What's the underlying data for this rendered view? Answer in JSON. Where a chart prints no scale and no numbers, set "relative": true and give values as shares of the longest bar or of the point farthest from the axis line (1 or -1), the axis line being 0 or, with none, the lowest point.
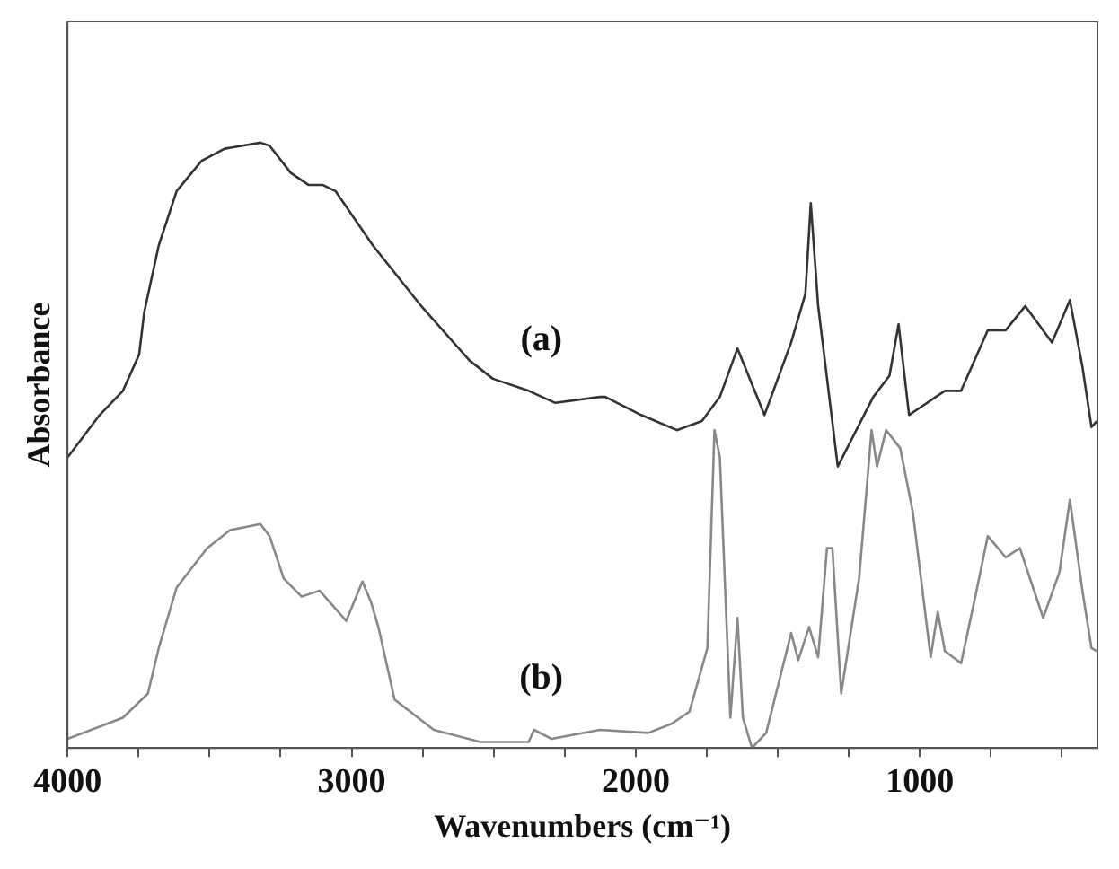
{
  "chart_data": {
    "type": "line",
    "xlabel": "Wavenumbers (cm⁻¹)",
    "ylabel": "Absorbance",
    "relative": true,
    "grid": false,
    "legend": false,
    "marker": "none",
    "line_style": "solid",
    "xlim": [
      4000,
      375
    ],
    "xticks": [
      4000,
      {
        "value": 3750,
        "label": null
      },
      {
        "value": 3500,
        "label": null
      },
      {
        "value": 3250,
        "label": null
      },
      3000,
      {
        "value": 2750,
        "label": null
      },
      {
        "value": 2500,
        "label": null
      },
      {
        "value": 2250,
        "label": null
      },
      2000,
      {
        "value": 1750,
        "label": null
      },
      {
        "value": 1500,
        "label": null
      },
      {
        "value": 1250,
        "label": null
      },
      1000,
      {
        "value": 750,
        "label": null
      },
      {
        "value": 500,
        "label": null
      }
    ],
    "series": [
      {
        "name": "(a)",
        "color": "#333333",
        "x": [
          4000,
          3887,
          3805,
          3748,
          3730,
          3679,
          3616,
          3528,
          3447,
          3321,
          3289,
          3214,
          3151,
          3101,
          3057,
          2925,
          2755,
          2585,
          2503,
          2377,
          2283,
          2126,
          2107,
          1981,
          1855,
          1767,
          1704,
          1642,
          1547,
          1453,
          1403,
          1384,
          1358,
          1289,
          1164,
          1107,
          1075,
          1038,
          912,
          855,
          761,
          698,
          629,
          535,
          472,
          428,
          396,
          377
        ],
        "values": [
          0.48,
          0.55,
          0.59,
          0.65,
          0.72,
          0.83,
          0.92,
          0.97,
          0.99,
          1,
          0.995,
          0.95,
          0.93,
          0.93,
          0.92,
          0.83,
          0.73,
          0.64,
          0.61,
          0.59,
          0.57,
          0.58,
          0.58,
          0.55,
          0.525,
          0.54,
          0.58,
          0.66,
          0.55,
          0.67,
          0.75,
          0.9,
          0.73,
          0.465,
          0.58,
          0.615,
          0.7,
          0.55,
          0.59,
          0.59,
          0.69,
          0.69,
          0.73,
          0.67,
          0.74,
          0.63,
          0.53,
          0.54
        ]
      },
      {
        "name": "(b)",
        "color": "#888888",
        "x": [
          4000,
          3805,
          3717,
          3679,
          3616,
          3509,
          3428,
          3321,
          3289,
          3239,
          3176,
          3113,
          3019,
          2962,
          2931,
          2906,
          2849,
          2711,
          2547,
          2377,
          2358,
          2296,
          2126,
          1956,
          1874,
          1811,
          1748,
          1723,
          1704,
          1667,
          1642,
          1623,
          1591,
          1541,
          1453,
          1428,
          1390,
          1358,
          1327,
          1308,
          1277,
          1214,
          1170,
          1151,
          1119,
          1069,
          1025,
          962,
          937,
          912,
          855,
          805,
          761,
          698,
          648,
          566,
          509,
          472,
          428,
          396,
          377
        ],
        "values": [
          0.015,
          0.05,
          0.09,
          0.165,
          0.265,
          0.33,
          0.36,
          0.37,
          0.35,
          0.28,
          0.25,
          0.26,
          0.21,
          0.275,
          0.24,
          0.2,
          0.08,
          0.03,
          0.01,
          0.01,
          0.03,
          0.015,
          0.03,
          0.025,
          0.04,
          0.06,
          0.165,
          0.525,
          0.48,
          0.05,
          0.215,
          0.05,
          0,
          0.025,
          0.19,
          0.145,
          0.2,
          0.15,
          0.33,
          0.33,
          0.09,
          0.28,
          0.525,
          0.465,
          0.525,
          0.495,
          0.39,
          0.15,
          0.225,
          0.16,
          0.14,
          0.25,
          0.35,
          0.315,
          0.33,
          0.215,
          0.29,
          0.41,
          0.26,
          0.165,
          0.16
        ]
      }
    ]
  }
}
